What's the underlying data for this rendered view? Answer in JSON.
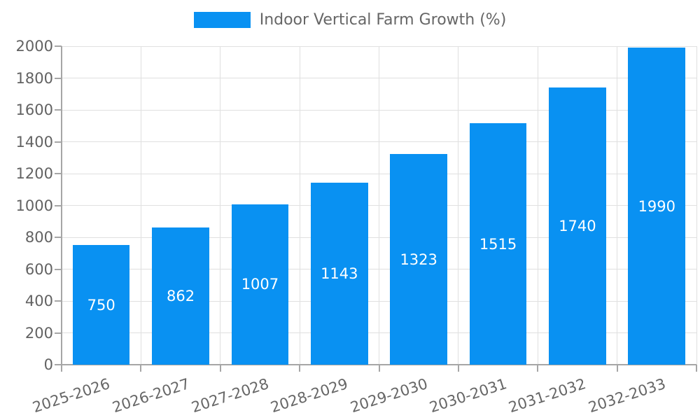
{
  "chart_data": {
    "type": "bar",
    "title": "Indoor Vertical Farm Growth (%)",
    "legend_entries": [
      "Indoor Vertical Farm Growth (%)"
    ],
    "legend_position": "top",
    "categories": [
      "2025-2026",
      "2026-2027",
      "2027-2028",
      "2028-2029",
      "2029-2030",
      "2030-2031",
      "2031-2032",
      "2032-2033"
    ],
    "values": [
      750,
      862,
      1007,
      1143,
      1323,
      1515,
      1740,
      1990
    ],
    "bar_labels": [
      "750",
      "862",
      "1007",
      "1143",
      "1323",
      "1515",
      "1740",
      "1990"
    ],
    "xlabel": "",
    "ylabel": "",
    "ylim": [
      0,
      2000
    ],
    "yticks": [
      0,
      200,
      400,
      600,
      800,
      1000,
      1200,
      1400,
      1600,
      1800,
      2000
    ],
    "grid": "both",
    "colors": {
      "bar": "#0991f2",
      "grid": "#e0e0e0",
      "axis": "#a6a6a6",
      "tick_text": "#666666",
      "value_text": "#ffffff",
      "legend_text": "#666666",
      "background": "#ffffff"
    }
  }
}
